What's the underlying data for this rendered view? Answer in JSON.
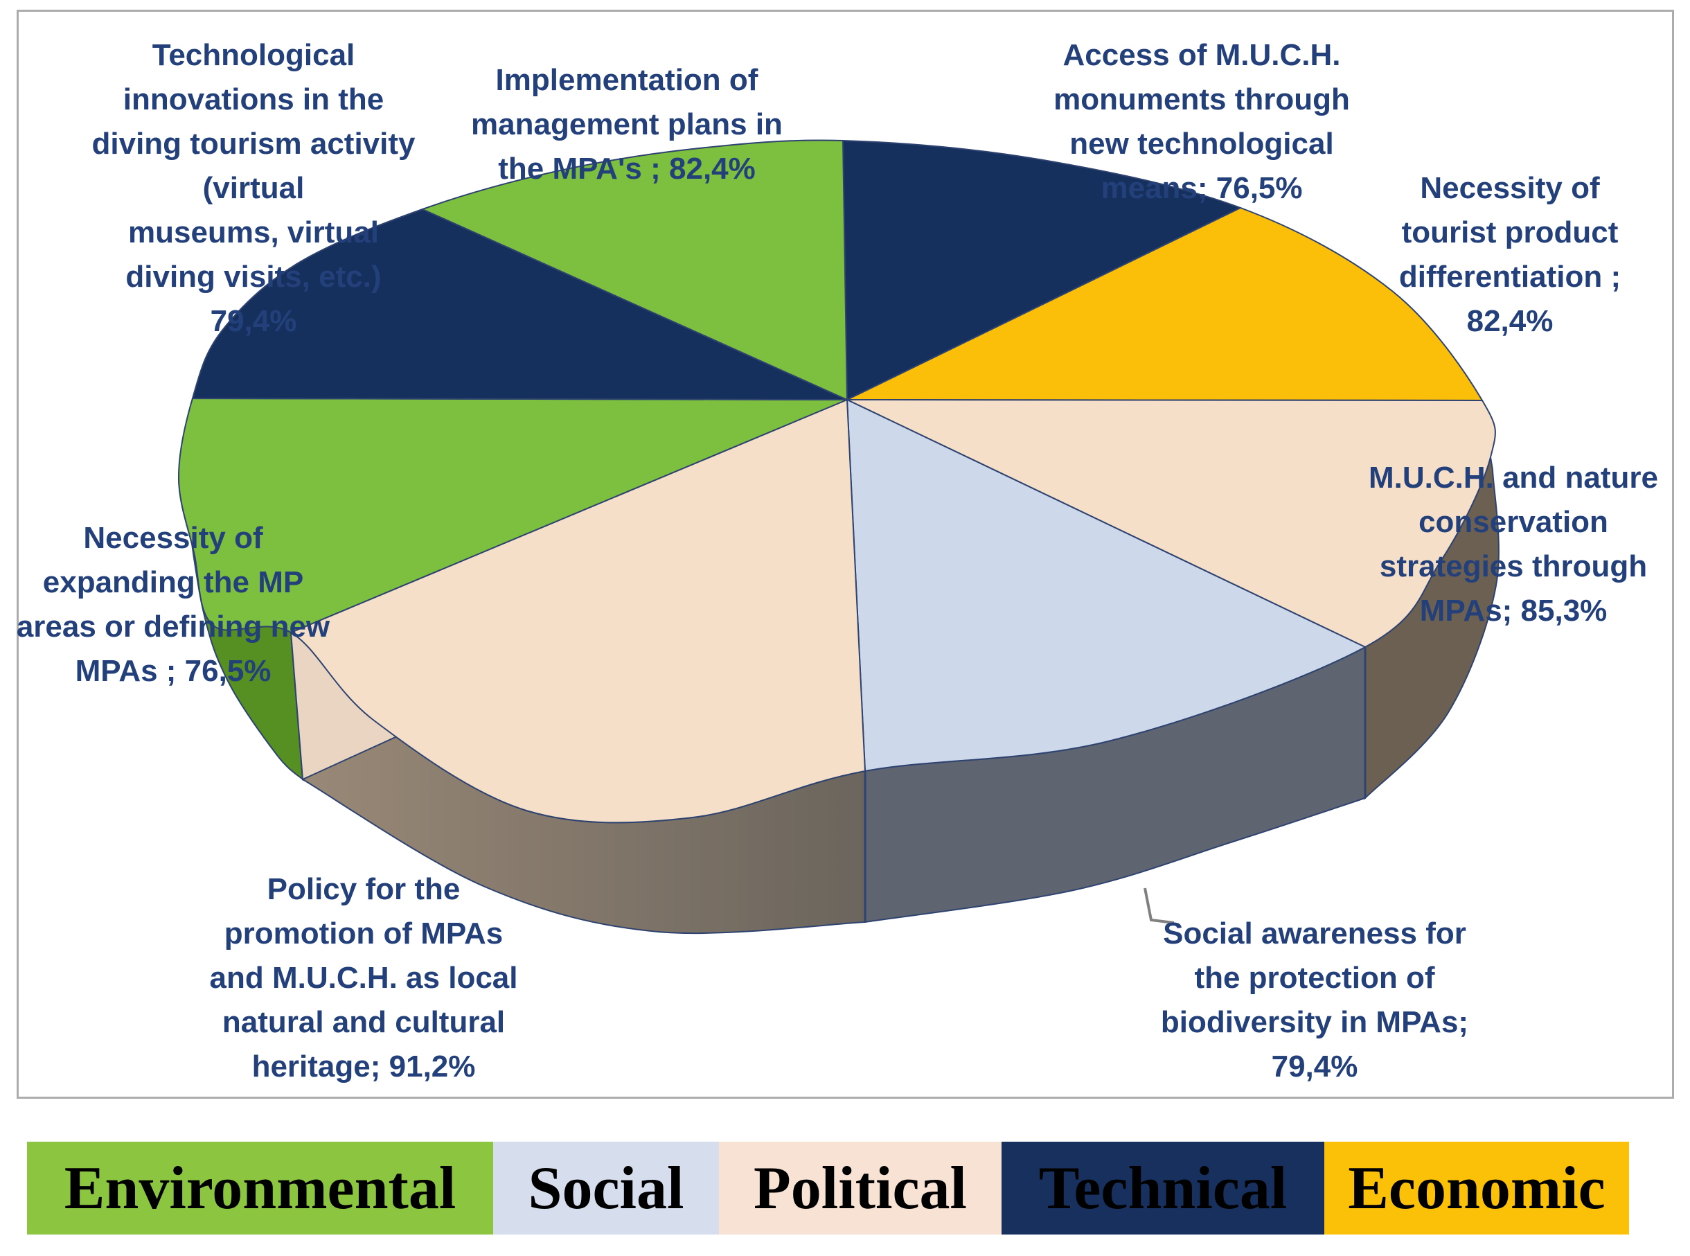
{
  "chart_data": {
    "type": "pie",
    "style": "3d",
    "unit": "%",
    "note": "values are agreement percentages shown in labels; slice angles proportional to values",
    "slices": [
      {
        "label": "Access of M.U.C.H. monuments through new technological means",
        "value": 76.5,
        "value_label": "76,5%",
        "category": "Technical",
        "color": "#16305E"
      },
      {
        "label": "Necessity of tourist product differentiation",
        "value": 82.4,
        "value_label": "82,4%",
        "category": "Economic",
        "color": "#FBBE09"
      },
      {
        "label": "M.U.C.H. and nature conservation strategies through MPAs",
        "value": 85.3,
        "value_label": "85,3%",
        "category": "Political",
        "color": "#F5DFC8"
      },
      {
        "label": "Social awareness for the protection of biodiversity in MPAs",
        "value": 79.4,
        "value_label": "79,4%",
        "category": "Social",
        "color": "#CDD9EA"
      },
      {
        "label": "Policy for the promotion of MPAs and M.U.C.H. as local natural and cultural heritage",
        "value": 91.2,
        "value_label": "91,2%",
        "category": "Political",
        "color": "#F5DFC8"
      },
      {
        "label": "Necessity of expanding the MP areas or defining new MPAs",
        "value": 76.5,
        "value_label": "76,5%",
        "category": "Environmental",
        "color": "#7DBF3E"
      },
      {
        "label": "Technological innovations in the diving tourism activity (virtual museums, virtual diving visits, etc.)",
        "value": 79.4,
        "value_label": "79,4%",
        "category": "Technical",
        "color": "#16305E"
      },
      {
        "label": "Implementation of management plans in the MPA's",
        "value": 82.4,
        "value_label": "82,4%",
        "category": "Environmental",
        "color": "#7DBF3E"
      }
    ],
    "walls": {
      "green": "#568F22",
      "pink_left": "#9A8977",
      "pink_left2": "#6B655D",
      "blue": "#5E6470",
      "pink_right": "#6B6052",
      "face": "#E9D5C1"
    },
    "legend": [
      {
        "label": "Environmental",
        "color": "#8CC641"
      },
      {
        "label": "Social",
        "color": "#D6DEED"
      },
      {
        "label": "Political",
        "color": "#F8E2D3"
      },
      {
        "label": "Technical",
        "color": "#17305D"
      },
      {
        "label": "Economic",
        "color": "#FBC108"
      }
    ]
  },
  "labels": {
    "tech_innov": [
      "Technological",
      "innovations in the",
      "diving tourism activity",
      "(virtual",
      "museums, virtual",
      "diving visits, etc.)",
      "79,4%"
    ],
    "implementation": [
      "Implementation of",
      "management plans in",
      "the MPA's ; 82,4%"
    ],
    "access": [
      "Access of M.U.C.H.",
      "monuments through",
      "new technological",
      "means; 76,5%"
    ],
    "tourist": [
      "Necessity of",
      "tourist product",
      "differentiation ;",
      "82,4%"
    ],
    "much_nature": [
      "M.U.C.H. and nature",
      "conservation",
      "strategies through",
      "MPAs; 85,3%"
    ],
    "social": [
      "Social awareness for",
      "the protection of",
      "biodiversity in MPAs;",
      "79,4%"
    ],
    "policy": [
      "Policy for the",
      "promotion of MPAs",
      "and M.U.C.H. as local",
      "natural and cultural",
      "heritage; 91,2%"
    ],
    "expanding": [
      "Necessity of",
      "expanding the MP",
      "areas or defining new",
      "MPAs ; 76,5%"
    ]
  }
}
